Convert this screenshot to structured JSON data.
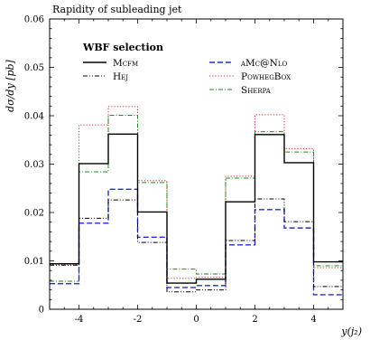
{
  "chart_data": {
    "type": "line",
    "title": "Rapidity of subleading jet",
    "ylabel": "dσ/dy [pb]",
    "xlabel": "y(j₂)",
    "xlim": [
      -5,
      5
    ],
    "ylim": [
      0,
      0.06
    ],
    "x_ticks": [
      -4,
      -2,
      0,
      2,
      4
    ],
    "x_tick_labels": [
      "-4",
      "-2",
      "0",
      "2",
      "4"
    ],
    "y_ticks": [
      0,
      0.01,
      0.02,
      0.03,
      0.04,
      0.05,
      0.06
    ],
    "y_tick_labels": [
      "0",
      "0.01",
      "0.02",
      "0.03",
      "0.04",
      "0.05",
      "0.06"
    ],
    "legend_title": "WBF selection",
    "legend_position": "top",
    "bin_edges": [
      -5,
      -4,
      -3,
      -2,
      -1,
      0,
      1,
      2,
      3,
      4,
      5
    ],
    "series": [
      {
        "name": "Mcfm",
        "color": "#000000",
        "dash": "solid",
        "values": [
          0.0094,
          0.0301,
          0.0362,
          0.0201,
          0.0054,
          0.0062,
          0.0222,
          0.0361,
          0.0303,
          0.0098
        ]
      },
      {
        "name": "Hej",
        "color": "#000000",
        "dash": "dashdotdot",
        "values": [
          0.0091,
          0.0188,
          0.0226,
          0.0138,
          0.0036,
          0.004,
          0.0142,
          0.0228,
          0.0181,
          0.0047
        ]
      },
      {
        "name": "aMc@Nlo",
        "color": "#1f2fd6",
        "dash": "dashed",
        "values": [
          0.0053,
          0.0178,
          0.0248,
          0.0149,
          0.0045,
          0.0049,
          0.0133,
          0.0206,
          0.0168,
          0.003
        ]
      },
      {
        "name": "PowhegBox",
        "color": "#d62a2a",
        "dash": "dotted",
        "values": [
          0.0092,
          0.0381,
          0.0419,
          0.0266,
          0.0064,
          0.0066,
          0.0275,
          0.0402,
          0.0332,
          0.0086
        ]
      },
      {
        "name": "Sherpa",
        "color": "#1a8a1a",
        "dash": "dashdot",
        "values": [
          0.0058,
          0.0284,
          0.0401,
          0.0262,
          0.0083,
          0.0073,
          0.0271,
          0.0367,
          0.0325,
          0.009
        ]
      }
    ]
  }
}
